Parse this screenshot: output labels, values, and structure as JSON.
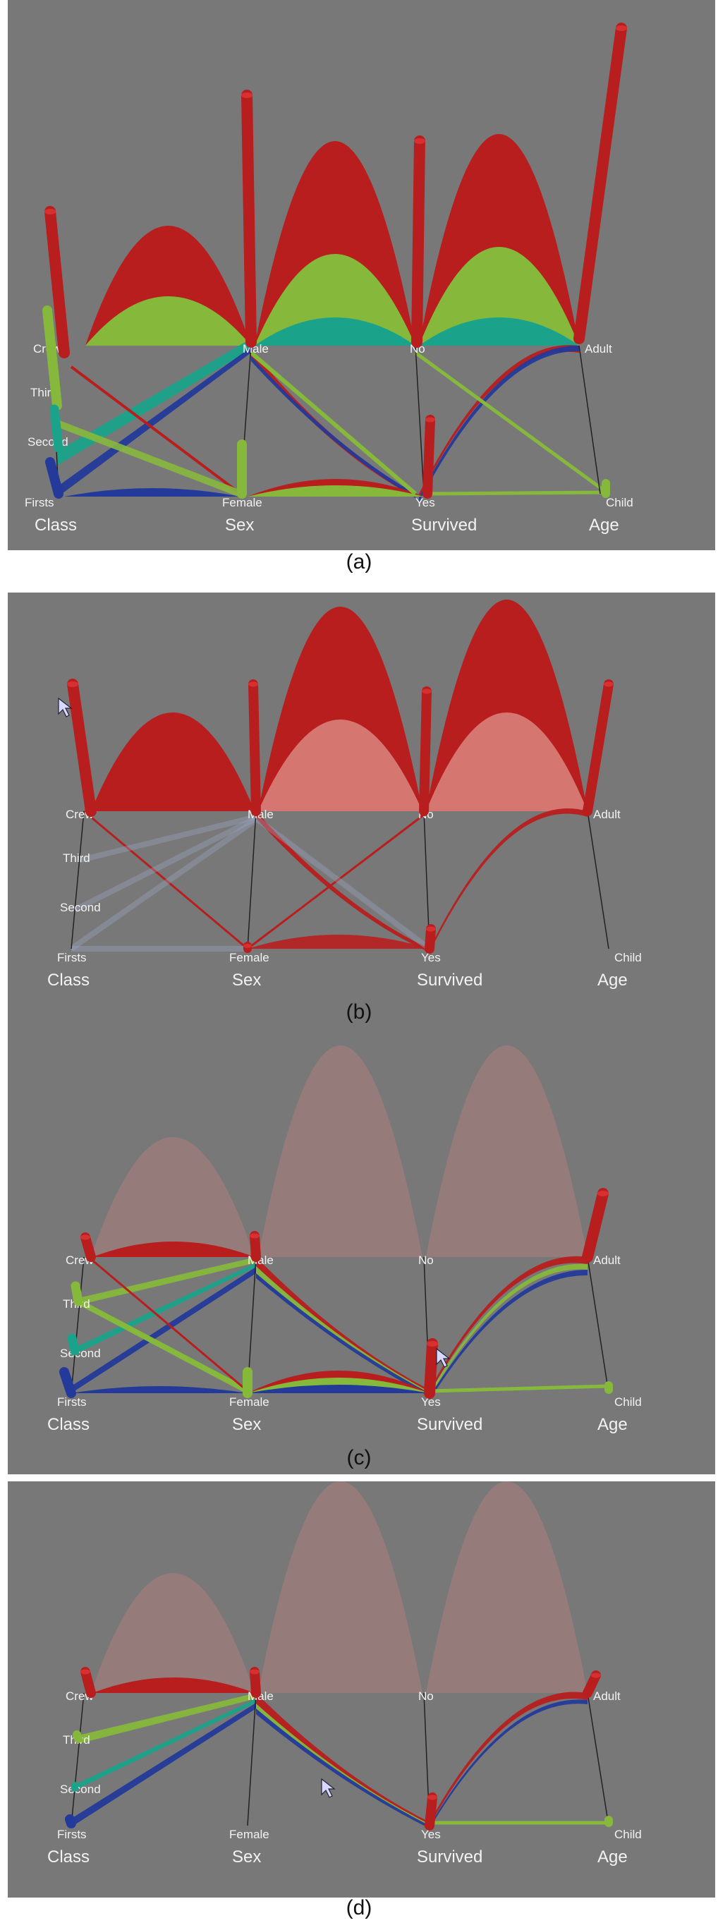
{
  "axes": [
    {
      "id": "class",
      "title": "Class",
      "categories": [
        "Crew",
        "Third",
        "Second",
        "Firsts"
      ]
    },
    {
      "id": "sex",
      "title": "Sex",
      "categories": [
        "Male",
        "Female"
      ]
    },
    {
      "id": "survived",
      "title": "Survived",
      "categories": [
        "No",
        "Yes"
      ]
    },
    {
      "id": "age",
      "title": "Age",
      "categories": [
        "Adult",
        "Child"
      ]
    }
  ],
  "colors": {
    "background": "#787878",
    "crew": "#b81e1e",
    "third": "#86b83c",
    "second": "#1aa38a",
    "first": "#233a9a",
    "bar_cap_crew": "#d83030",
    "axis_line": "#222222",
    "label": "#f2f2f2"
  },
  "panels": [
    {
      "caption": "(a)",
      "mode": "all-classes-opaque"
    },
    {
      "caption": "(b)",
      "mode": "crew-highlighted",
      "pointer": "on Crew bar"
    },
    {
      "caption": "(c)",
      "mode": "survived-yes-highlighted",
      "pointer": "on Yes bar"
    },
    {
      "caption": "(d)",
      "mode": "male-to-yes-highlighted",
      "pointer": "on Male-Yes ribbon"
    }
  ]
}
